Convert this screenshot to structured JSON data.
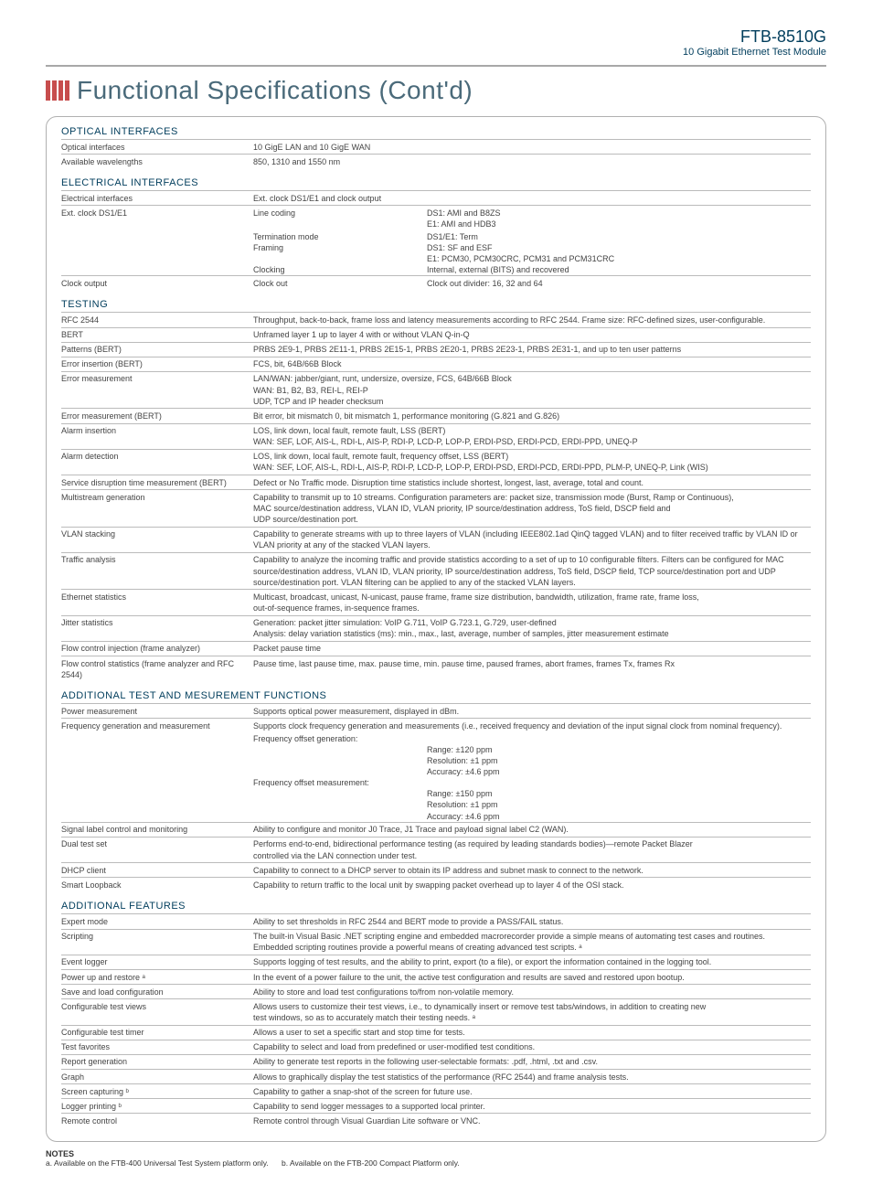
{
  "header": {
    "code": "FTB-8510G",
    "name": "10 Gigabit Ethernet Test Module"
  },
  "title": "Functional Specifications (Cont'd)",
  "sections": {
    "optical": {
      "title": "OPTICAL INTERFACES",
      "rows": [
        {
          "label": "Optical interfaces",
          "val": "10 GigE LAN and 10 GigE WAN"
        },
        {
          "label": "Available wavelengths",
          "val": "850, 1310 and 1550 nm"
        }
      ]
    },
    "electrical": {
      "title": "ELECTRICAL INTERFACES",
      "lead": {
        "label": "Electrical interfaces",
        "val": "Ext. clock DS1/E1 and clock output"
      },
      "ext_label": "Ext. clock DS1/E1",
      "ext_rows": [
        {
          "sub": "Line coding",
          "vals": [
            "DS1: AMI and B8ZS",
            "E1: AMI and HDB3"
          ]
        },
        {
          "sub": "Termination mode",
          "vals": [
            "DS1/E1: Term"
          ]
        },
        {
          "sub": "Framing",
          "vals": [
            "DS1: SF and ESF",
            "E1: PCM30, PCM30CRC, PCM31 and PCM31CRC"
          ]
        },
        {
          "sub": "Clocking",
          "vals": [
            "Internal, external (BITS) and recovered"
          ]
        }
      ],
      "clock_out": {
        "label": "Clock output",
        "sub": "Clock out",
        "val": "Clock out divider: 16, 32 and 64"
      }
    },
    "testing": {
      "title": "TESTING",
      "rows": [
        {
          "label": "RFC 2544",
          "vals": [
            "Throughput, back-to-back, frame loss and latency measurements according to RFC 2544. Frame size: RFC-defined sizes, user-configurable."
          ]
        },
        {
          "label": "BERT",
          "vals": [
            "Unframed layer 1 up to layer 4 with or without VLAN Q-in-Q"
          ]
        },
        {
          "label": "Patterns (BERT)",
          "vals": [
            "PRBS 2E9-1, PRBS 2E11-1, PRBS 2E15-1, PRBS 2E20-1, PRBS 2E23-1, PRBS 2E31-1, and up to ten user patterns"
          ]
        },
        {
          "label": "Error insertion (BERT)",
          "vals": [
            "FCS, bit, 64B/66B Block"
          ]
        },
        {
          "label": "Error measurement",
          "vals": [
            "LAN/WAN: jabber/giant, runt, undersize, oversize, FCS, 64B/66B Block",
            "WAN: B1, B2, B3, REI-L, REI-P",
            "UDP, TCP and IP header checksum"
          ]
        },
        {
          "label": "Error measurement (BERT)",
          "vals": [
            "Bit error, bit mismatch 0, bit mismatch 1, performance monitoring (G.821 and G.826)"
          ]
        },
        {
          "label": "Alarm insertion",
          "vals": [
            "LOS, link down, local fault, remote fault, LSS (BERT)",
            "WAN: SEF, LOF, AIS-L, RDI-L, AIS-P, RDI-P, LCD-P, LOP-P, ERDI-PSD, ERDI-PCD, ERDI-PPD, UNEQ-P"
          ]
        },
        {
          "label": "Alarm detection",
          "vals": [
            "LOS, link down, local fault, remote fault, frequency offset, LSS (BERT)",
            "WAN: SEF, LOF, AIS-L, RDI-L, AIS-P, RDI-P, LCD-P, LOP-P, ERDI-PSD, ERDI-PCD, ERDI-PPD, PLM-P, UNEQ-P, Link (WIS)"
          ]
        },
        {
          "label": "Service disruption time measurement (BERT)",
          "vals": [
            "Defect or No Traffic mode. Disruption time statistics include shortest, longest, last, average, total and count."
          ]
        },
        {
          "label": "Multistream generation",
          "vals": [
            "Capability to transmit up to 10 streams. Configuration parameters are: packet size, transmission mode (Burst, Ramp or Continuous),",
            "MAC source/destination address, VLAN ID, VLAN priority, IP source/destination address, ToS field, DSCP field and",
            "UDP source/destination port."
          ]
        },
        {
          "label": "VLAN stacking",
          "vals": [
            "Capability to generate streams with up to three layers of VLAN (including IEEE802.1ad QinQ tagged VLAN) and to filter received traffic by VLAN ID or VLAN priority at any of the stacked VLAN layers."
          ]
        },
        {
          "label": "Traffic analysis",
          "vals": [
            "Capability to analyze the incoming traffic and provide statistics according to a set of up to 10 configurable filters. Filters can be configured for MAC source/destination address, VLAN ID, VLAN priority, IP source/destination address, ToS field, DSCP field, TCP source/destination port and UDP source/destination port. VLAN filtering can be applied to any of the stacked VLAN layers."
          ]
        },
        {
          "label": "Ethernet statistics",
          "vals": [
            "Multicast, broadcast, unicast, N-unicast, pause frame, frame size distribution, bandwidth, utilization, frame rate, frame loss,",
            "out-of-sequence frames, in-sequence frames."
          ]
        },
        {
          "label": "Jitter statistics",
          "vals": [
            "Generation: packet jitter simulation: VoIP G.711, VoIP G.723.1, G.729, user-defined",
            "Analysis: delay variation statistics (ms): min., max., last, average, number of samples, jitter measurement estimate"
          ]
        },
        {
          "label": "Flow control injection (frame analyzer)",
          "vals": [
            "Packet pause time"
          ]
        },
        {
          "label": "Flow control statistics (frame analyzer and RFC 2544)",
          "vals": [
            "Pause time, last pause time, max. pause time, min. pause time, paused frames, abort frames, frames Tx, frames Rx"
          ]
        }
      ]
    },
    "additional_test": {
      "title": "ADDITIONAL TEST AND MESUREMENT FUNCTIONS",
      "rows": [
        {
          "label": "Power measurement",
          "vals": [
            "Supports optical power measurement, displayed in dBm."
          ]
        }
      ],
      "freq": {
        "label": "Frequency generation and measurement",
        "lead": "Supports clock frequency generation and measurements (i.e., received frequency and deviation of the input signal clock from nominal frequency).",
        "groups": [
          {
            "sub": "Frequency offset generation:",
            "lines": [
              "Range: ±120 ppm",
              "Resolution: ±1 ppm",
              "Accuracy: ±4.6 ppm"
            ]
          },
          {
            "sub": "Frequency offset measurement:",
            "lines": [
              "Range: ±150 ppm",
              "Resolution: ±1 ppm",
              "Accuracy: ±4.6 ppm"
            ]
          }
        ]
      },
      "more_rows": [
        {
          "label": "Signal label control and monitoring",
          "vals": [
            "Ability to configure and monitor J0 Trace, J1 Trace and payload signal label C2 (WAN)."
          ]
        },
        {
          "label": "Dual test set",
          "vals": [
            "Performs end-to-end, bidirectional performance testing (as required by leading standards bodies)—remote Packet Blazer",
            "controlled via the LAN connection under test."
          ]
        },
        {
          "label": "DHCP client",
          "vals": [
            "Capability to connect to a DHCP server to obtain its IP address and subnet mask to connect to the network."
          ]
        },
        {
          "label": "Smart Loopback",
          "vals": [
            "Capability to return traffic to the local unit by swapping packet overhead up to layer 4 of the OSI stack."
          ]
        }
      ]
    },
    "additional_features": {
      "title": "ADDITIONAL FEATURES",
      "rows": [
        {
          "label": "Expert mode",
          "vals": [
            "Ability to set thresholds in RFC 2544 and BERT mode to provide a PASS/FAIL status."
          ]
        },
        {
          "label": "Scripting",
          "vals": [
            "The built-in Visual Basic .NET scripting engine and embedded macrorecorder provide a simple means of automating test cases and routines.",
            "Embedded scripting routines provide a powerful means of creating advanced test scripts. ᵃ"
          ]
        },
        {
          "label": "Event logger",
          "vals": [
            "Supports logging of test results, and the ability to print, export (to a file), or export the information contained in the logging tool."
          ]
        },
        {
          "label": "Power up and restore ᵃ",
          "vals": [
            "In the event of a power failure to the unit, the active test configuration and results are saved and restored upon bootup."
          ]
        },
        {
          "label": "Save and load configuration",
          "vals": [
            "Ability to store and load test configurations to/from non-volatile memory."
          ]
        },
        {
          "label": "Configurable test views",
          "vals": [
            "Allows users to customize their test views, i.e., to dynamically insert or remove test tabs/windows, in addition to creating new",
            "test windows, so as to accurately match their testing needs. ᵃ"
          ]
        },
        {
          "label": "Configurable test timer",
          "vals": [
            "Allows a user to set a specific start and stop time for tests."
          ]
        },
        {
          "label": "Test favorites",
          "vals": [
            "Capability to select and load from predefined or user-modified test conditions."
          ]
        },
        {
          "label": "Report generation",
          "vals": [
            "Ability to generate test reports in the following user-selectable formats: .pdf, .html, .txt and .csv."
          ]
        },
        {
          "label": "Graph",
          "vals": [
            "Allows to graphically display the test statistics of the performance (RFC 2544) and frame analysis tests."
          ]
        },
        {
          "label": "Screen capturing ᵇ",
          "vals": [
            "Capability to gather a snap-shot of the screen for future use."
          ]
        },
        {
          "label": "Logger printing ᵇ",
          "vals": [
            "Capability to send logger messages to a supported local printer."
          ]
        },
        {
          "label": "Remote control",
          "vals": [
            "Remote control through Visual Guardian Lite software or VNC."
          ]
        }
      ]
    }
  },
  "notes": {
    "title": "NOTES",
    "a": "a. Available on the FTB-400 Universal Test System platform only.",
    "b": "b. Available on the FTB-200 Compact Platform only."
  }
}
